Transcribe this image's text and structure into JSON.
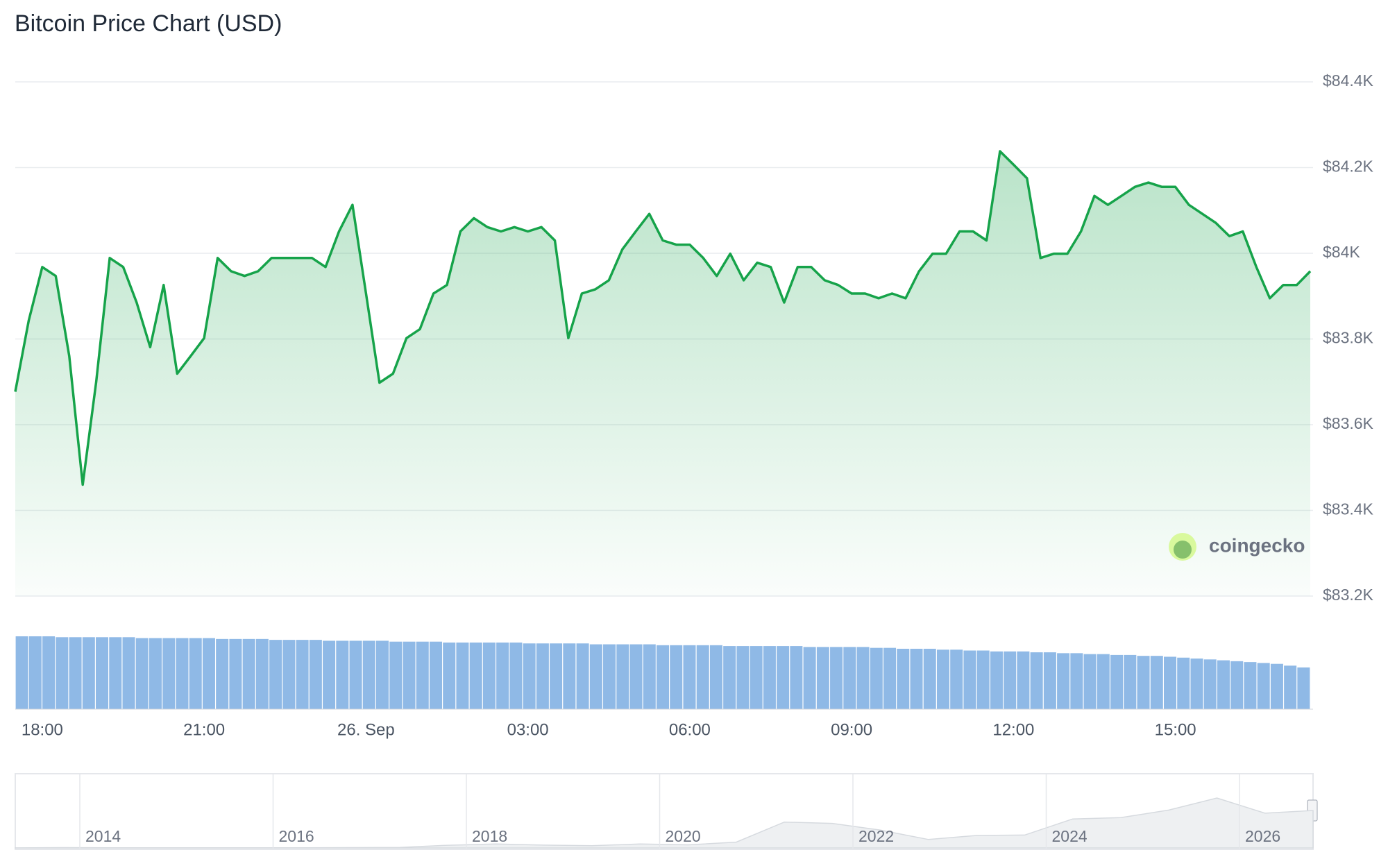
{
  "chart_data": {
    "type": "line",
    "title": "Bitcoin Price Chart (USD)",
    "color": "#16a34a",
    "categories": [
      null,
      null,
      "18:00",
      null,
      null,
      null,
      null,
      null,
      null,
      null,
      null,
      null,
      null,
      null,
      "21:00",
      null,
      null,
      null,
      null,
      null,
      null,
      null,
      null,
      null,
      null,
      null,
      "26. Sep",
      null,
      null,
      null,
      null,
      null,
      null,
      null,
      null,
      null,
      null,
      null,
      "03:00",
      null,
      null,
      null,
      null,
      null,
      null,
      null,
      null,
      null,
      null,
      null,
      "06:00",
      null,
      null,
      null,
      null,
      null,
      null,
      null,
      null,
      null,
      null,
      null,
      "09:00",
      null,
      null,
      null,
      null,
      null,
      null,
      null,
      null,
      null,
      null,
      null,
      "12:00",
      null,
      null,
      null,
      null,
      null,
      null,
      null,
      null,
      null,
      null,
      null,
      "15:00",
      null,
      null,
      null,
      null,
      null,
      null,
      null,
      null,
      null,
      null
    ],
    "values": [
      83677,
      83843,
      83968,
      83947,
      83760,
      83460,
      83700,
      83989,
      83968,
      83885,
      83781,
      83926,
      83719,
      83760,
      83802,
      83989,
      83958,
      83947,
      83958,
      83989,
      83989,
      83989,
      83989,
      83968,
      84051,
      84113,
      83906,
      83698,
      83719,
      83802,
      83823,
      83906,
      83926,
      84051,
      84082,
      84061,
      84051,
      84061,
      84051,
      84061,
      84030,
      83802,
      83906,
      83916,
      83937,
      84009,
      84051,
      84092,
      84030,
      84020,
      84020,
      83989,
      83947,
      83999,
      83937,
      83978,
      83968,
      83885,
      83968,
      83968,
      83937,
      83926,
      83906,
      83906,
      83895,
      83906,
      83895,
      83958,
      83999,
      83999,
      84051,
      84051,
      84030,
      84238,
      84207,
      84175,
      83989,
      83999,
      83999,
      84051,
      84134,
      84113,
      84134,
      84155,
      84165,
      84155,
      84155,
      84113,
      84092,
      84071,
      84040,
      84051,
      83968,
      83895,
      83926,
      83926,
      83958
    ],
    "ylim": [
      83200,
      84400
    ],
    "yticks": [
      {
        "value": 83200,
        "label": "$83.2K"
      },
      {
        "value": 83400,
        "label": "$83.4K"
      },
      {
        "value": 83600,
        "label": "$83.6K"
      },
      {
        "value": 83800,
        "label": "$83.8K"
      },
      {
        "value": 84000,
        "label": "$84K"
      },
      {
        "value": 84200,
        "label": "$84.2K"
      },
      {
        "value": 84400,
        "label": "$84.4K"
      }
    ],
    "grid": true,
    "volume": {
      "color": "#8fb9e6",
      "values": [
        82,
        82,
        82,
        81,
        81,
        81,
        81,
        81,
        81,
        80,
        80,
        80,
        80,
        80,
        80,
        79,
        79,
        79,
        79,
        78,
        78,
        78,
        78,
        77,
        77,
        77,
        77,
        77,
        76,
        76,
        76,
        76,
        75,
        75,
        75,
        75,
        75,
        75,
        74,
        74,
        74,
        74,
        74,
        73,
        73,
        73,
        73,
        73,
        72,
        72,
        72,
        72,
        72,
        71,
        71,
        71,
        71,
        71,
        71,
        70,
        70,
        70,
        70,
        70,
        69,
        69,
        68,
        68,
        68,
        67,
        67,
        66,
        66,
        65,
        65,
        65,
        64,
        64,
        63,
        63,
        62,
        62,
        61,
        61,
        60,
        60,
        59,
        58,
        57,
        56,
        55,
        54,
        53,
        52,
        51,
        49,
        47
      ]
    },
    "navigator": {
      "labels": [
        "2014",
        "2016",
        "2018",
        "2020",
        "2022",
        "2024",
        "2026"
      ],
      "values": [
        0.1,
        0.8,
        0.5,
        0.35,
        0.24,
        0.3,
        0.45,
        0.7,
        1.2,
        6,
        9,
        6.4,
        5,
        9,
        7,
        13,
        58,
        55,
        40,
        19,
        28,
        29,
        65,
        68,
        85,
        112,
        78,
        84
      ]
    },
    "watermark": "coingecko"
  }
}
